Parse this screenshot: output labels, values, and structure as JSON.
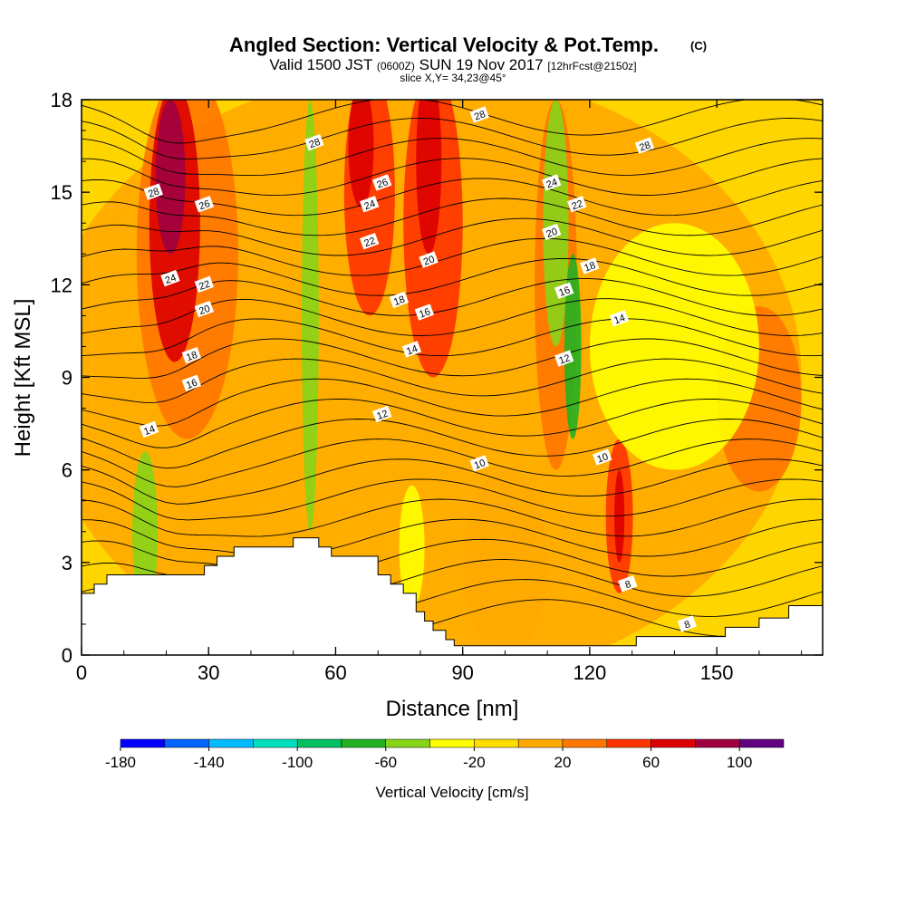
{
  "header": {
    "title": "Angled Section: Vertical Velocity & Pot.Temp.",
    "title_unit": "(C)",
    "valid_prefix": "Valid 1500 JST",
    "valid_utc": "(0600Z)",
    "valid_date": "SUN 19 Nov 2017",
    "forecast": "[12hrFcst@2150z]",
    "slice": "slice X,Y= 34,23@45°"
  },
  "chart_data": {
    "type": "heatmap",
    "xlabel": "Distance [nm]",
    "ylabel": "Height [Kft MSL]",
    "xlim": [
      0,
      175
    ],
    "ylim": [
      0,
      18
    ],
    "x_ticks": [
      0,
      30,
      60,
      90,
      120,
      150
    ],
    "y_ticks": [
      0,
      3,
      6,
      9,
      12,
      15,
      18
    ],
    "fill_variable": "Vertical Velocity [cm/s]",
    "colorbar": {
      "label": "Vertical Velocity [cm/s]",
      "levels": [
        -180,
        -160,
        -140,
        -120,
        -100,
        -80,
        -60,
        -40,
        -20,
        0,
        20,
        40,
        60,
        80,
        100,
        120
      ],
      "tick_labels": [
        -180,
        -140,
        -100,
        -60,
        -20,
        20,
        60,
        100
      ],
      "colors": [
        "#0000ff",
        "#0066ff",
        "#00bbff",
        "#00dfc0",
        "#00c060",
        "#22b022",
        "#88d418",
        "#ffff00",
        "#ffdd00",
        "#ffaa00",
        "#ff7700",
        "#ff3300",
        "#dd0000",
        "#a00040",
        "#600080"
      ]
    },
    "contour_variable": "Potential Temperature (C)",
    "contour_labels": [
      {
        "value": "28",
        "x": 17,
        "y": 15.0
      },
      {
        "value": "28",
        "x": 55,
        "y": 16.6
      },
      {
        "value": "28",
        "x": 94,
        "y": 17.5
      },
      {
        "value": "28",
        "x": 133,
        "y": 16.5
      },
      {
        "value": "26",
        "x": 29,
        "y": 14.6
      },
      {
        "value": "26",
        "x": 71,
        "y": 15.3
      },
      {
        "value": "24",
        "x": 21,
        "y": 12.2
      },
      {
        "value": "24",
        "x": 68,
        "y": 14.6
      },
      {
        "value": "24",
        "x": 111,
        "y": 15.3
      },
      {
        "value": "22",
        "x": 29,
        "y": 12.0
      },
      {
        "value": "22",
        "x": 68,
        "y": 13.4
      },
      {
        "value": "22",
        "x": 117,
        "y": 14.6
      },
      {
        "value": "20",
        "x": 29,
        "y": 11.2
      },
      {
        "value": "20",
        "x": 82,
        "y": 12.8
      },
      {
        "value": "20",
        "x": 111,
        "y": 13.7
      },
      {
        "value": "18",
        "x": 26,
        "y": 9.7
      },
      {
        "value": "18",
        "x": 75,
        "y": 11.5
      },
      {
        "value": "18",
        "x": 120,
        "y": 12.6
      },
      {
        "value": "16",
        "x": 26,
        "y": 8.8
      },
      {
        "value": "16",
        "x": 81,
        "y": 11.1
      },
      {
        "value": "16",
        "x": 114,
        "y": 11.8
      },
      {
        "value": "14",
        "x": 16,
        "y": 7.3
      },
      {
        "value": "14",
        "x": 78,
        "y": 9.9
      },
      {
        "value": "14",
        "x": 127,
        "y": 10.9
      },
      {
        "value": "12",
        "x": 71,
        "y": 7.8
      },
      {
        "value": "12",
        "x": 114,
        "y": 9.6
      },
      {
        "value": "10",
        "x": 94,
        "y": 6.2
      },
      {
        "value": "10",
        "x": 123,
        "y": 6.4
      },
      {
        "value": "8",
        "x": 129,
        "y": 2.3
      },
      {
        "value": "8",
        "x": 143,
        "y": 1.0
      }
    ],
    "terrain_top": [
      [
        0,
        2.0
      ],
      [
        3,
        2.0
      ],
      [
        3,
        2.3
      ],
      [
        6,
        2.3
      ],
      [
        6,
        2.6
      ],
      [
        29,
        2.6
      ],
      [
        29,
        2.9
      ],
      [
        32,
        2.9
      ],
      [
        32,
        3.2
      ],
      [
        36,
        3.2
      ],
      [
        36,
        3.5
      ],
      [
        50,
        3.5
      ],
      [
        50,
        3.8
      ],
      [
        56,
        3.8
      ],
      [
        56,
        3.5
      ],
      [
        59,
        3.5
      ],
      [
        59,
        3.2
      ],
      [
        70,
        3.2
      ],
      [
        70,
        2.6
      ],
      [
        73,
        2.6
      ],
      [
        73,
        2.3
      ],
      [
        76,
        2.3
      ],
      [
        76,
        2.0
      ],
      [
        79,
        2.0
      ],
      [
        79,
        1.4
      ],
      [
        81,
        1.4
      ],
      [
        81,
        1.1
      ],
      [
        83,
        1.1
      ],
      [
        83,
        0.8
      ],
      [
        86,
        0.8
      ],
      [
        86,
        0.5
      ],
      [
        88,
        0.5
      ],
      [
        88,
        0.3
      ],
      [
        131,
        0.3
      ],
      [
        131,
        0.6
      ],
      [
        152,
        0.6
      ],
      [
        152,
        0.9
      ],
      [
        160,
        0.9
      ],
      [
        160,
        1.2
      ],
      [
        167,
        1.2
      ],
      [
        167,
        1.6
      ],
      [
        175,
        1.6
      ]
    ]
  }
}
